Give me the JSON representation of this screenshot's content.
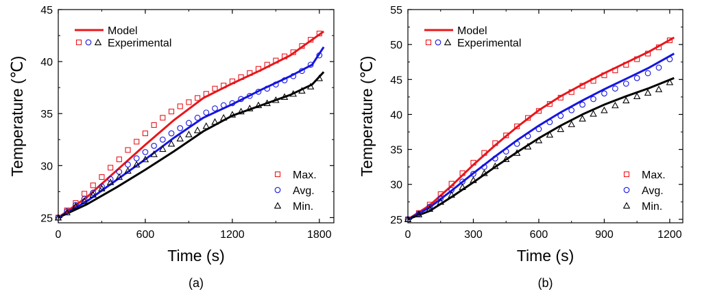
{
  "chart_data": [
    {
      "type": "line",
      "panel_label": "(a)",
      "xlabel": "Time (s)",
      "ylabel": "Temperature (℃)",
      "xlim": [
        0,
        1900
      ],
      "ylim": [
        24.5,
        45
      ],
      "xticks": [
        0,
        600,
        1200,
        1800
      ],
      "yticks": [
        25,
        30,
        35,
        40,
        45
      ],
      "legend_top": {
        "model_label": "Model",
        "experimental_label": "Experimental"
      },
      "legend_bottom": [
        "Max.",
        "Avg.",
        "Min."
      ],
      "model_series": [
        {
          "name": "Max.",
          "color": "#e8161b",
          "x": [
            0,
            200,
            400,
            600,
            800,
            1000,
            1200,
            1400,
            1600,
            1700,
            1830
          ],
          "y": [
            25.0,
            27.0,
            29.5,
            32.0,
            34.4,
            36.5,
            37.9,
            39.2,
            40.6,
            41.6,
            42.9
          ]
        },
        {
          "name": "Avg.",
          "color": "#1515e0",
          "x": [
            0,
            200,
            400,
            600,
            800,
            1000,
            1200,
            1400,
            1600,
            1750,
            1830
          ],
          "y": [
            25.0,
            26.6,
            28.6,
            30.6,
            32.7,
            34.6,
            35.9,
            37.3,
            38.6,
            39.7,
            41.4
          ]
        },
        {
          "name": "Min.",
          "color": "#000000",
          "x": [
            0,
            200,
            400,
            600,
            800,
            1000,
            1200,
            1400,
            1600,
            1750,
            1830
          ],
          "y": [
            25.0,
            26.3,
            27.9,
            29.6,
            31.4,
            33.3,
            34.8,
            35.8,
            36.8,
            37.8,
            39.0
          ]
        }
      ],
      "experimental_series": [
        {
          "name": "Max.",
          "marker": "square",
          "color": "#e8161b",
          "x": [
            0,
            60,
            120,
            180,
            240,
            300,
            360,
            420,
            480,
            540,
            600,
            660,
            720,
            780,
            840,
            900,
            960,
            1020,
            1080,
            1140,
            1200,
            1260,
            1320,
            1380,
            1440,
            1500,
            1560,
            1620,
            1680,
            1740,
            1800
          ],
          "y": [
            25.0,
            25.7,
            26.4,
            27.3,
            28.1,
            28.9,
            29.8,
            30.6,
            31.5,
            32.3,
            33.1,
            33.9,
            34.6,
            35.2,
            35.7,
            36.1,
            36.5,
            36.9,
            37.4,
            37.7,
            38.1,
            38.5,
            38.9,
            39.3,
            39.7,
            40.1,
            40.5,
            40.9,
            41.5,
            42.1,
            42.7
          ]
        },
        {
          "name": "Avg.",
          "marker": "circle",
          "color": "#1515e0",
          "x": [
            0,
            60,
            120,
            180,
            240,
            300,
            360,
            420,
            480,
            540,
            600,
            660,
            720,
            780,
            840,
            900,
            960,
            1020,
            1080,
            1140,
            1200,
            1260,
            1320,
            1380,
            1440,
            1500,
            1560,
            1620,
            1680,
            1740,
            1800
          ],
          "y": [
            25.0,
            25.6,
            26.2,
            26.8,
            27.4,
            28.0,
            28.7,
            29.4,
            30.1,
            30.7,
            31.3,
            31.9,
            32.5,
            33.1,
            33.6,
            34.1,
            34.6,
            35.1,
            35.5,
            35.8,
            36.0,
            36.4,
            36.7,
            37.1,
            37.4,
            37.8,
            38.2,
            38.6,
            39.1,
            39.7,
            40.6
          ]
        },
        {
          "name": "Min.",
          "marker": "triangle",
          "color": "#000000",
          "x": [
            0,
            60,
            120,
            180,
            240,
            300,
            360,
            420,
            480,
            540,
            600,
            660,
            720,
            780,
            840,
            900,
            960,
            1020,
            1080,
            1140,
            1200,
            1260,
            1320,
            1380,
            1440,
            1500,
            1560,
            1620,
            1680,
            1740,
            1800
          ],
          "y": [
            25.0,
            25.5,
            26.1,
            26.6,
            27.2,
            27.8,
            28.4,
            28.9,
            29.5,
            30.1,
            30.6,
            31.1,
            31.6,
            32.1,
            32.6,
            33.0,
            33.4,
            33.8,
            34.2,
            34.6,
            34.9,
            35.2,
            35.5,
            35.8,
            36.0,
            36.3,
            36.6,
            36.9,
            37.2,
            37.6,
            38.4
          ]
        }
      ]
    },
    {
      "type": "line",
      "panel_label": "(b)",
      "xlabel": "Time (s)",
      "ylabel": "Temperature (℃)",
      "xlim": [
        0,
        1260
      ],
      "ylim": [
        24.5,
        55
      ],
      "xticks": [
        0,
        300,
        600,
        900,
        1200
      ],
      "yticks": [
        25,
        30,
        35,
        40,
        45,
        50,
        55
      ],
      "legend_top": {
        "model_label": "Model",
        "experimental_label": "Experimental"
      },
      "legend_bottom": [
        "Max.",
        "Avg.",
        "Min."
      ],
      "model_series": [
        {
          "name": "Max.",
          "color": "#e8161b",
          "x": [
            0,
            100,
            200,
            300,
            400,
            500,
            600,
            700,
            800,
            900,
            1000,
            1100,
            1220
          ],
          "y": [
            25.0,
            27.0,
            29.8,
            32.8,
            35.6,
            38.2,
            40.6,
            42.6,
            44.3,
            45.9,
            47.4,
            48.9,
            51.0
          ]
        },
        {
          "name": "Avg.",
          "color": "#1515e0",
          "x": [
            0,
            100,
            200,
            300,
            400,
            500,
            600,
            700,
            800,
            900,
            1000,
            1100,
            1220
          ],
          "y": [
            25.0,
            26.7,
            29.1,
            31.6,
            34.0,
            36.3,
            38.4,
            40.3,
            42.0,
            43.6,
            45.1,
            46.6,
            48.7
          ]
        },
        {
          "name": "Min.",
          "color": "#000000",
          "x": [
            0,
            100,
            200,
            300,
            400,
            500,
            600,
            700,
            800,
            900,
            1000,
            1100,
            1220
          ],
          "y": [
            25.0,
            26.2,
            28.2,
            30.3,
            32.5,
            34.6,
            36.6,
            38.4,
            40.0,
            41.4,
            42.6,
            43.7,
            45.2
          ]
        }
      ],
      "experimental_series": [
        {
          "name": "Max.",
          "marker": "square",
          "color": "#e8161b",
          "x": [
            0,
            50,
            100,
            150,
            200,
            250,
            300,
            350,
            400,
            450,
            500,
            550,
            600,
            650,
            700,
            750,
            800,
            850,
            900,
            950,
            1000,
            1050,
            1100,
            1150,
            1200
          ],
          "y": [
            25.0,
            25.9,
            27.1,
            28.6,
            30.1,
            31.6,
            33.1,
            34.5,
            35.9,
            37.0,
            38.3,
            39.5,
            40.5,
            41.5,
            42.4,
            43.2,
            44.1,
            44.8,
            45.6,
            46.3,
            47.1,
            47.9,
            48.7,
            49.6,
            50.6
          ]
        },
        {
          "name": "Avg.",
          "marker": "circle",
          "color": "#1515e0",
          "x": [
            0,
            50,
            100,
            150,
            200,
            250,
            300,
            350,
            400,
            450,
            500,
            550,
            600,
            650,
            700,
            750,
            800,
            850,
            900,
            950,
            1000,
            1050,
            1100,
            1150,
            1200
          ],
          "y": [
            25.0,
            25.8,
            26.8,
            28.0,
            29.2,
            30.4,
            31.5,
            32.5,
            33.7,
            34.7,
            35.8,
            36.9,
            37.9,
            38.9,
            39.8,
            40.6,
            41.4,
            42.2,
            43.0,
            43.7,
            44.4,
            45.2,
            45.9,
            46.7,
            47.9
          ]
        },
        {
          "name": "Min.",
          "marker": "triangle",
          "color": "#000000",
          "x": [
            0,
            50,
            100,
            150,
            200,
            250,
            300,
            350,
            400,
            450,
            500,
            550,
            600,
            650,
            700,
            750,
            800,
            850,
            900,
            950,
            1000,
            1050,
            1100,
            1150,
            1200
          ],
          "y": [
            25.0,
            25.7,
            26.5,
            27.5,
            28.5,
            29.6,
            30.6,
            31.6,
            32.6,
            33.6,
            34.5,
            35.4,
            36.3,
            37.1,
            37.9,
            38.6,
            39.4,
            40.1,
            40.6,
            41.3,
            42.0,
            42.6,
            43.1,
            43.6,
            44.6
          ]
        }
      ]
    }
  ]
}
